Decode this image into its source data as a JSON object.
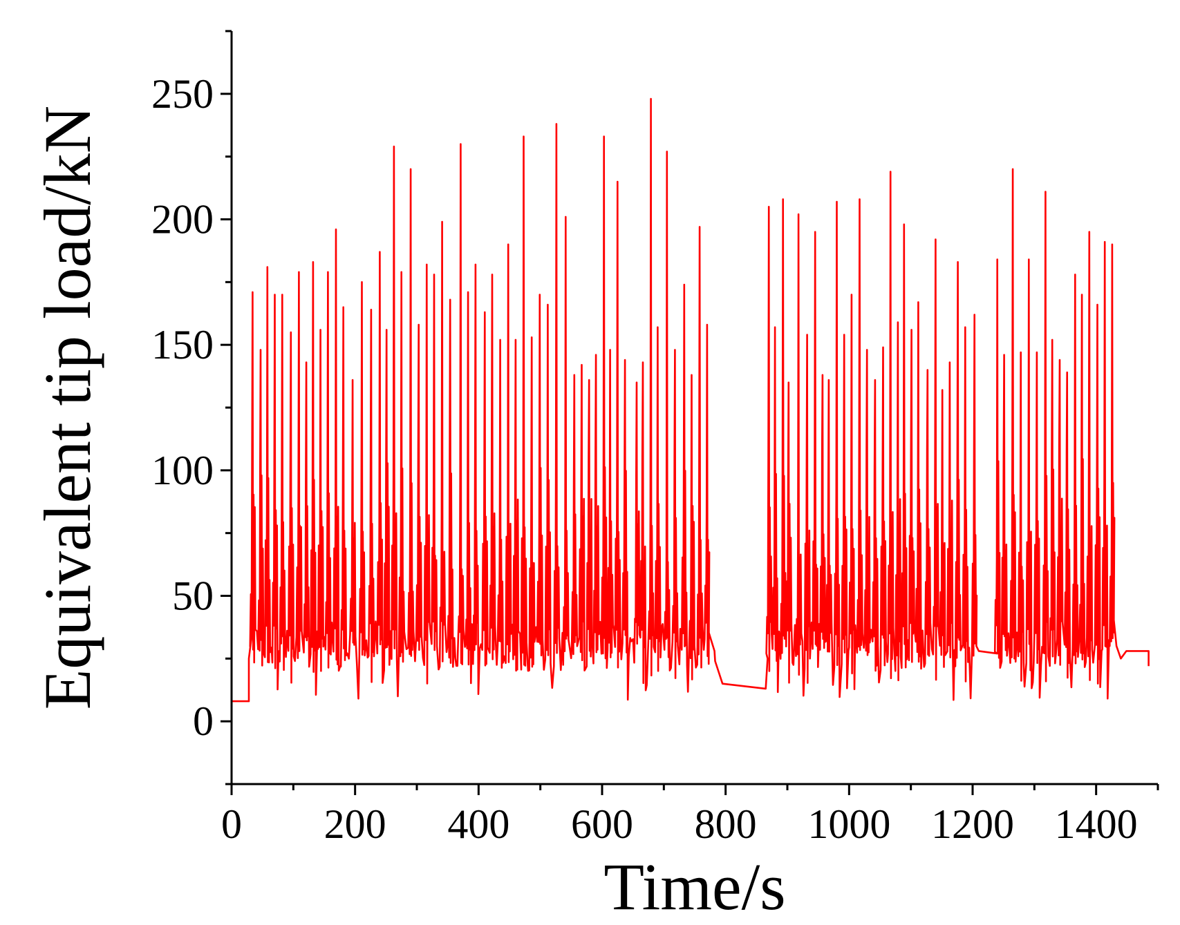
{
  "chart_data": {
    "type": "line",
    "xlabel": "Time/s",
    "ylabel": "Equivalent tip load/kN",
    "xlim": [
      0,
      1500
    ],
    "ylim": [
      -25,
      275
    ],
    "xticks": [
      0,
      200,
      400,
      600,
      800,
      1000,
      1200,
      1400
    ],
    "yticks": [
      0,
      50,
      100,
      150,
      200,
      250
    ],
    "x_minor_step": 100,
    "y_minor_step": 25,
    "line_color": "#ff0000",
    "grid": false,
    "legend": "none",
    "series": [
      {
        "peaks": [
          [
            34,
            171
          ],
          [
            47,
            148
          ],
          [
            58,
            181
          ],
          [
            70,
            170
          ],
          [
            82,
            170
          ],
          [
            96,
            155
          ],
          [
            109,
            179
          ],
          [
            121,
            143
          ],
          [
            132,
            183
          ],
          [
            144,
            156
          ],
          [
            156,
            179
          ],
          [
            169,
            196
          ],
          [
            181,
            165
          ],
          [
            196,
            136
          ],
          [
            211,
            175
          ],
          [
            226,
            164
          ],
          [
            240,
            187
          ],
          [
            251,
            156
          ],
          [
            263,
            229
          ],
          [
            275,
            179
          ],
          [
            290,
            220
          ],
          [
            303,
            158
          ],
          [
            316,
            182
          ],
          [
            328,
            178
          ],
          [
            341,
            199
          ],
          [
            354,
            168
          ],
          [
            371,
            230
          ],
          [
            383,
            171
          ],
          [
            395,
            182
          ],
          [
            410,
            163
          ],
          [
            422,
            178
          ],
          [
            435,
            152
          ],
          [
            448,
            190
          ],
          [
            460,
            152
          ],
          [
            473,
            233
          ],
          [
            486,
            153
          ],
          [
            499,
            170
          ],
          [
            512,
            166
          ],
          [
            526,
            238
          ],
          [
            541,
            201
          ],
          [
            555,
            138
          ],
          [
            567,
            142
          ],
          [
            579,
            136
          ],
          [
            590,
            146
          ],
          [
            603,
            233
          ],
          [
            613,
            148
          ],
          [
            625,
            215
          ],
          [
            637,
            144
          ],
          [
            656,
            135
          ],
          [
            666,
            143
          ],
          [
            679,
            248
          ],
          [
            690,
            157
          ],
          [
            705,
            227
          ],
          [
            718,
            148
          ],
          [
            733,
            174
          ],
          [
            745,
            138
          ],
          [
            758,
            197
          ],
          [
            770,
            158
          ],
          [
            870,
            205
          ],
          [
            880,
            157
          ],
          [
            893,
            208
          ],
          [
            902,
            135
          ],
          [
            918,
            202
          ],
          [
            932,
            154
          ],
          [
            945,
            195
          ],
          [
            957,
            138
          ],
          [
            967,
            136
          ],
          [
            980,
            207
          ],
          [
            992,
            154
          ],
          [
            1004,
            170
          ],
          [
            1017,
            208
          ],
          [
            1029,
            148
          ],
          [
            1042,
            136
          ],
          [
            1055,
            149
          ],
          [
            1067,
            219
          ],
          [
            1079,
            159
          ],
          [
            1089,
            198
          ],
          [
            1101,
            156
          ],
          [
            1112,
            167
          ],
          [
            1127,
            140
          ],
          [
            1140,
            192
          ],
          [
            1151,
            132
          ],
          [
            1163,
            143
          ],
          [
            1176,
            183
          ],
          [
            1188,
            157
          ],
          [
            1203,
            162
          ],
          [
            1240,
            184
          ],
          [
            1251,
            146
          ],
          [
            1265,
            220
          ],
          [
            1278,
            147
          ],
          [
            1291,
            184
          ],
          [
            1304,
            147
          ],
          [
            1318,
            211
          ],
          [
            1329,
            152
          ],
          [
            1341,
            144
          ],
          [
            1353,
            139
          ],
          [
            1366,
            178
          ],
          [
            1377,
            170
          ],
          [
            1389,
            195
          ],
          [
            1402,
            166
          ],
          [
            1414,
            191
          ],
          [
            1426,
            190
          ]
        ],
        "segments": [
          {
            "x": [
              0,
              28,
              28,
              33
            ],
            "y": [
              8,
              8,
              25,
              35
            ]
          },
          {
            "x": [
              772,
              782,
              783,
              795,
              865,
              868
            ],
            "y": [
              36,
              28,
              24,
              15,
              13,
              25
            ]
          },
          {
            "x": [
              1206,
              1210,
              1240
            ],
            "y": [
              30,
              28,
              27
            ]
          },
          {
            "x": [
              1428,
              1433,
              1440,
              1449,
              1485,
              1485
            ],
            "y": [
              42,
              30,
              25,
              28,
              28,
              22
            ]
          }
        ]
      }
    ]
  }
}
